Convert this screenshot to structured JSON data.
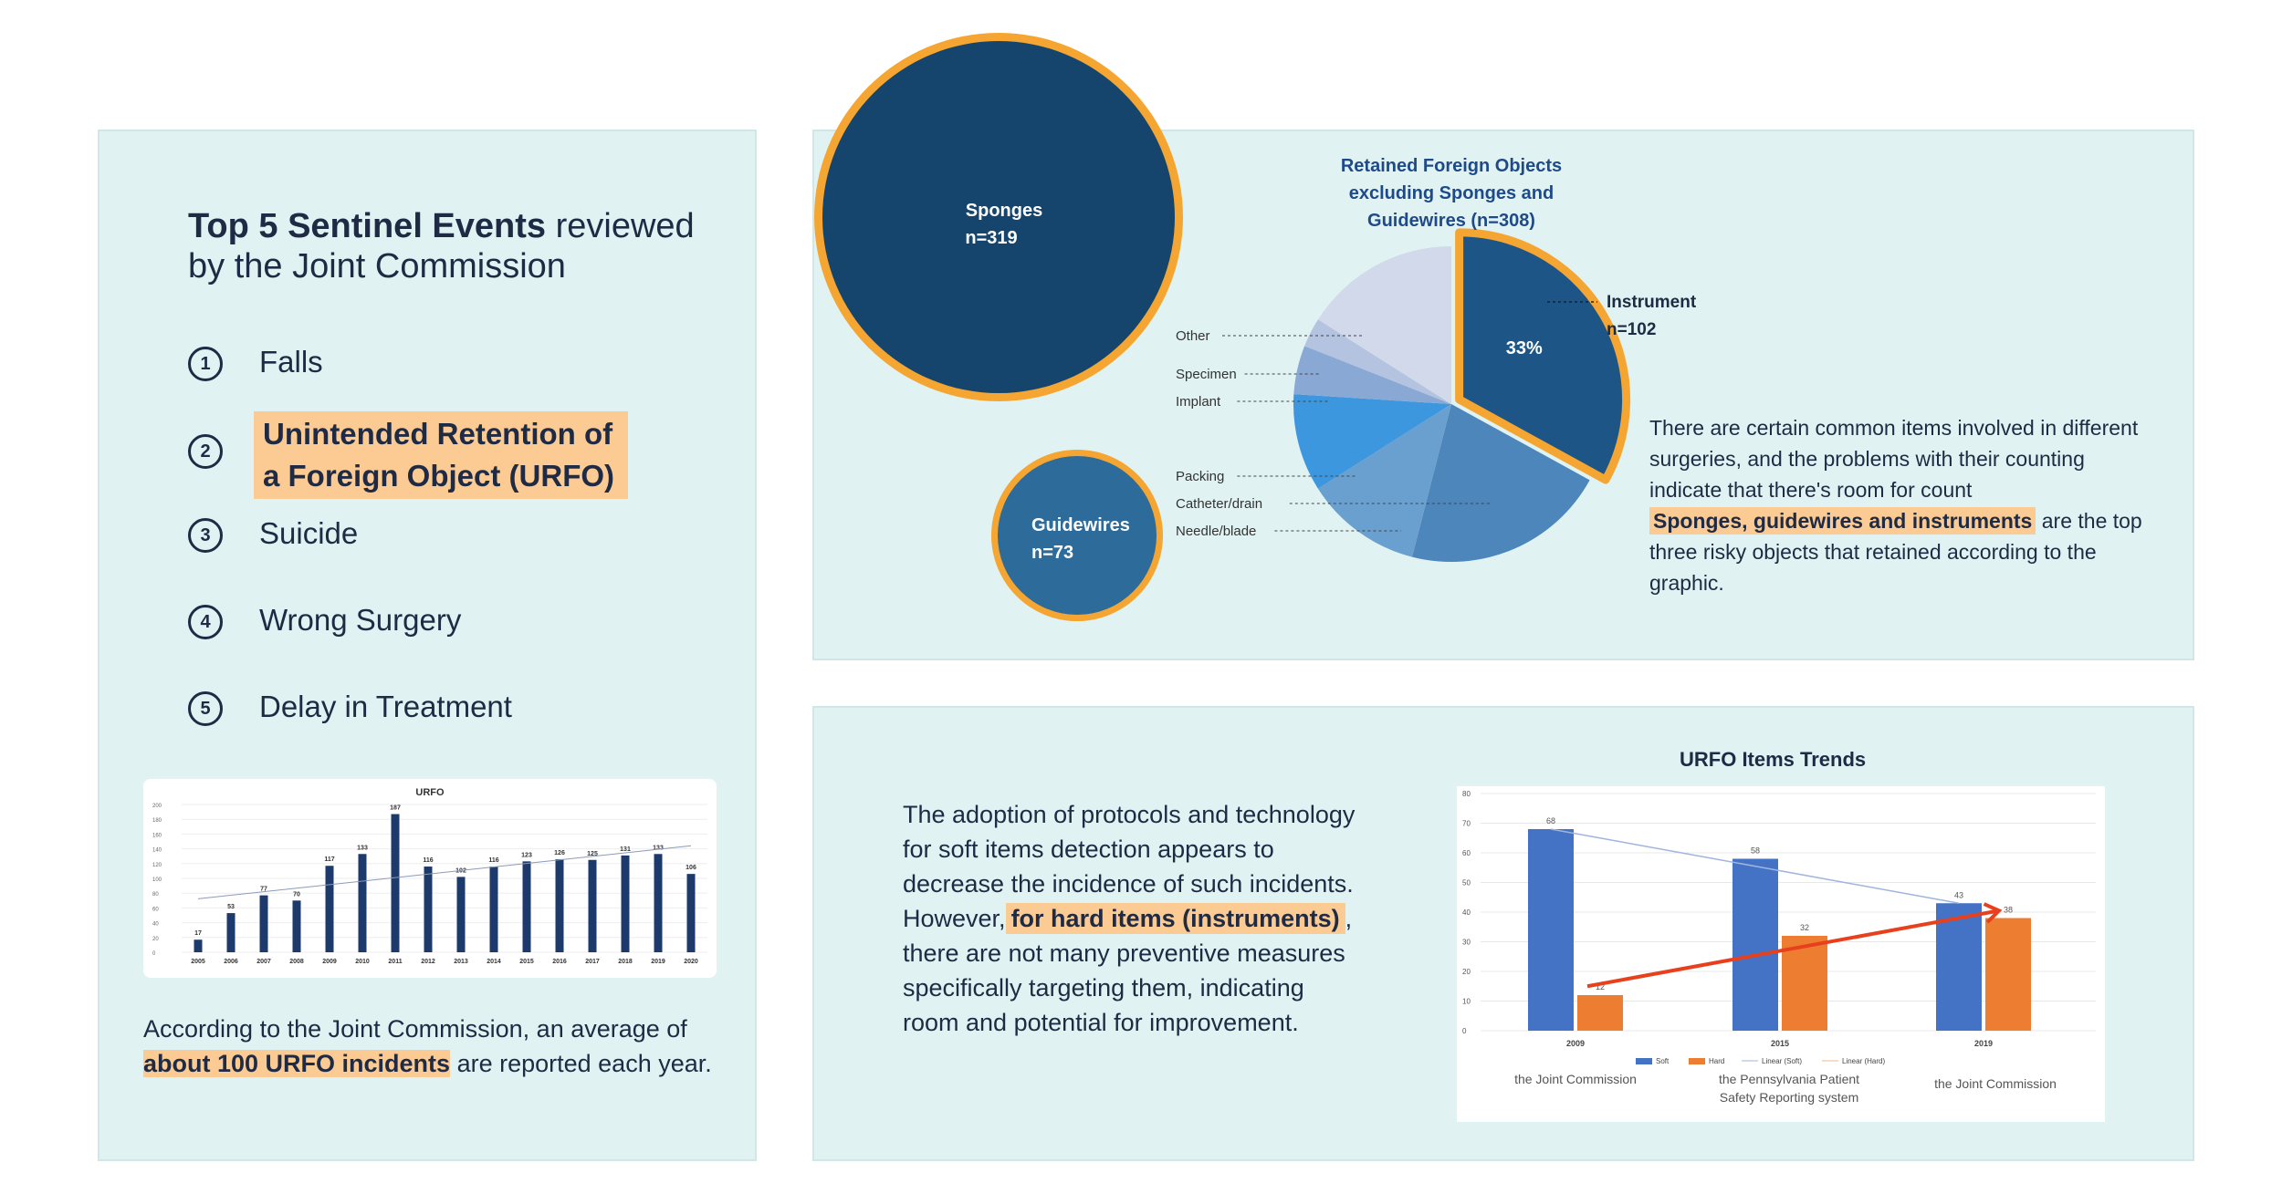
{
  "left": {
    "title_bold": "Top 5 Sentinel Events",
    "title_rest": "reviewed by the Joint Commission",
    "events": [
      {
        "num": "1",
        "label": "Falls"
      },
      {
        "num": "2",
        "label": "Unintended Retention of a Foreign Object (URFO)"
      },
      {
        "num": "3",
        "label": "Suicide"
      },
      {
        "num": "4",
        "label": "Wrong Surgery"
      },
      {
        "num": "5",
        "label": "Delay in Treatment"
      }
    ],
    "caption_pre": "According to the Joint Commission, an average of",
    "caption_hl": "about 100 URFO incidents",
    "caption_post": "are reported each year."
  },
  "bubbles": {
    "sponges": {
      "label": "Sponges",
      "n": "n=319"
    },
    "guidewires": {
      "label": "Guidewires",
      "n": "n=73"
    }
  },
  "pie_text": {
    "p1": "There are certain common items involved in different surgeries, and the problems with their counting indicate that there's room for count",
    "hl": "Sponges, guidewires and instruments",
    "p2": "are the top three risky objects that retained according to the graphic."
  },
  "trend_text": {
    "p1": "The adoption of protocols and technology for soft items detection appears to decrease the incidence of such incidents.",
    "p2_pre": "However,",
    "p2_hl": "for hard items (instruments)",
    "p2_post": ", there are not many preventive measures specifically targeting them, indicating room and potential for improvement."
  },
  "colors": {
    "navy": "#1c3a6b",
    "orange": "#f5a531",
    "highlight": "#fbcb93",
    "panel": "#e0f3f2"
  },
  "chart_data": [
    {
      "type": "bar",
      "title": "URFO",
      "categories": [
        "2005",
        "2006",
        "2007",
        "2008",
        "2009",
        "2010",
        "2011",
        "2012",
        "2013",
        "2014",
        "2015",
        "2016",
        "2017",
        "2018",
        "2019",
        "2020"
      ],
      "values": [
        17,
        53,
        77,
        70,
        117,
        133,
        187,
        116,
        102,
        116,
        123,
        126,
        125,
        131,
        133,
        106
      ],
      "ylim": [
        0,
        200
      ],
      "yticks": [
        "0",
        "20",
        "40",
        "60",
        "80",
        "100",
        "120",
        "140",
        "160",
        "180",
        "200"
      ],
      "trendline": true
    },
    {
      "type": "pie",
      "title": "Retained Foreign Objects excluding Sponges and Guidewires  (n=308)",
      "slices": [
        {
          "label": "Instrument",
          "value": 33,
          "annotation": "n=102",
          "pct_label": "33%",
          "color": "#1c5586"
        },
        {
          "label": "Needle/blade",
          "value": 21,
          "color": "#4c86bb"
        },
        {
          "label": "Catheter/drain",
          "value": 12,
          "color": "#6aa0cf"
        },
        {
          "label": "Packing",
          "value": 10,
          "color": "#3d97de"
        },
        {
          "label": "Implant",
          "value": 5,
          "color": "#89a8d3"
        },
        {
          "label": "Specimen",
          "value": 3,
          "color": "#b3c3e0"
        },
        {
          "label": "Other",
          "value": 16,
          "color": "#d2d9ea"
        }
      ]
    },
    {
      "type": "bar",
      "title": "URFO Items Trends",
      "categories": [
        "2009",
        "2015",
        "2019"
      ],
      "series": [
        {
          "name": "Soft",
          "values": [
            68,
            58,
            43
          ],
          "color": "#4472c4"
        },
        {
          "name": "Hard",
          "values": [
            12,
            32,
            38
          ],
          "color": "#ed7d31"
        }
      ],
      "extra_legend": [
        "Linear (Soft)",
        "Linear (Hard)"
      ],
      "ylim": [
        0,
        80
      ],
      "yticks": [
        "0",
        "10",
        "20",
        "30",
        "40",
        "50",
        "60",
        "70",
        "80"
      ],
      "sources": [
        "the Joint Commission",
        "the Pennsylvania Patient Safety Reporting system",
        "the Joint Commission"
      ]
    }
  ]
}
